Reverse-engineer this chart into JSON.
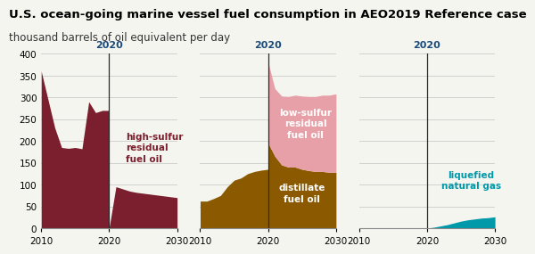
{
  "title": "U.S. ocean-going marine vessel fuel consumption in AEO2019 Reference case",
  "subtitle": "thousand barrels of oil equivalent per day",
  "years": [
    2010,
    2011,
    2012,
    2013,
    2014,
    2015,
    2016,
    2017,
    2018,
    2019,
    2020,
    2020.01,
    2021,
    2022,
    2023,
    2024,
    2025,
    2026,
    2027,
    2028,
    2029,
    2030
  ],
  "panel1": {
    "label": "high-sulfur\nresidual\nfuel oil",
    "color": "#7B1F2E",
    "data": [
      360,
      295,
      230,
      185,
      183,
      185,
      182,
      290,
      265,
      270,
      270,
      2,
      95,
      90,
      85,
      82,
      80,
      78,
      76,
      74,
      72,
      70
    ]
  },
  "panel2_distillate": {
    "label": "distillate\nfuel oil",
    "color": "#8B5A00",
    "data": [
      62,
      62,
      68,
      75,
      95,
      110,
      115,
      125,
      130,
      133,
      135,
      195,
      165,
      145,
      140,
      140,
      135,
      132,
      130,
      130,
      128,
      128
    ]
  },
  "panel2_lowsulfur": {
    "label": "low-sulfur\nresidual\nfuel oil",
    "color": "#E8A0A8",
    "data": [
      0,
      0,
      0,
      0,
      0,
      0,
      0,
      0,
      0,
      0,
      0,
      185,
      155,
      158,
      162,
      165,
      168,
      170,
      172,
      175,
      177,
      180
    ]
  },
  "panel3": {
    "label": "liquefied\nnatural gas",
    "color": "#0099AA",
    "data": [
      0,
      0,
      0,
      0,
      0,
      0,
      0,
      0,
      0,
      0,
      0,
      0,
      2,
      5,
      8,
      12,
      16,
      19,
      21,
      23,
      24,
      26
    ]
  },
  "ylim": [
    0,
    400
  ],
  "yticks": [
    0,
    50,
    100,
    150,
    200,
    250,
    300,
    350,
    400
  ],
  "xticks": [
    2010,
    2020,
    2030
  ],
  "vline_year": 2020,
  "vline_color": "#2B2B2B",
  "vline_label_color": "#1a4a7a",
  "background_color": "#f5f5f0",
  "title_fontsize": 9.5,
  "subtitle_fontsize": 8.5,
  "label_color_p1": "#7B1F2E",
  "label_color_p2_low": "white",
  "label_color_p2_dist": "white",
  "label_color_p3": "#0099AA"
}
